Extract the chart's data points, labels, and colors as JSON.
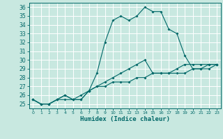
{
  "xlabel": "Humidex (Indice chaleur)",
  "xlim": [
    -0.5,
    23.5
  ],
  "ylim": [
    24.5,
    36.5
  ],
  "yticks": [
    25,
    26,
    27,
    28,
    29,
    30,
    31,
    32,
    33,
    34,
    35,
    36
  ],
  "xticks": [
    0,
    1,
    2,
    3,
    4,
    5,
    6,
    7,
    8,
    9,
    10,
    11,
    12,
    13,
    14,
    15,
    16,
    17,
    18,
    19,
    20,
    21,
    22,
    23
  ],
  "bg_color": "#c8e8e0",
  "grid_color": "#ffffff",
  "line_color": "#006868",
  "line1_x": [
    0,
    1,
    2,
    3,
    4,
    5,
    6,
    7,
    8,
    9,
    10,
    11,
    12,
    13,
    14,
    15,
    16,
    17,
    18,
    19,
    20,
    21,
    22,
    23
  ],
  "line1_y": [
    25.5,
    25.0,
    25.0,
    25.5,
    25.5,
    25.5,
    25.5,
    26.5,
    28.5,
    32.0,
    34.5,
    35.0,
    34.5,
    35.0,
    36.0,
    35.5,
    35.5,
    33.5,
    33.0,
    30.5,
    29.0,
    29.0,
    29.5,
    29.5
  ],
  "line2_x": [
    0,
    1,
    2,
    3,
    4,
    5,
    6,
    7,
    8,
    9,
    10,
    11,
    12,
    13,
    14,
    15,
    16,
    17,
    18,
    19,
    20,
    21,
    22,
    23
  ],
  "line2_y": [
    25.5,
    25.0,
    25.0,
    25.5,
    26.0,
    25.5,
    26.0,
    26.5,
    27.0,
    27.5,
    28.0,
    28.5,
    29.0,
    29.5,
    30.0,
    28.5,
    28.5,
    28.5,
    29.0,
    29.5,
    29.5,
    29.5,
    29.5,
    29.5
  ],
  "line3_x": [
    0,
    1,
    2,
    3,
    4,
    5,
    6,
    7,
    8,
    9,
    10,
    11,
    12,
    13,
    14,
    15,
    16,
    17,
    18,
    19,
    20,
    21,
    22,
    23
  ],
  "line3_y": [
    25.5,
    25.0,
    25.0,
    25.5,
    26.0,
    25.5,
    25.5,
    26.5,
    27.0,
    27.0,
    27.5,
    27.5,
    27.5,
    28.0,
    28.0,
    28.5,
    28.5,
    28.5,
    28.5,
    28.5,
    29.0,
    29.0,
    29.0,
    29.5
  ],
  "tick_fontsize": 5.5,
  "xlabel_fontsize": 6.5
}
